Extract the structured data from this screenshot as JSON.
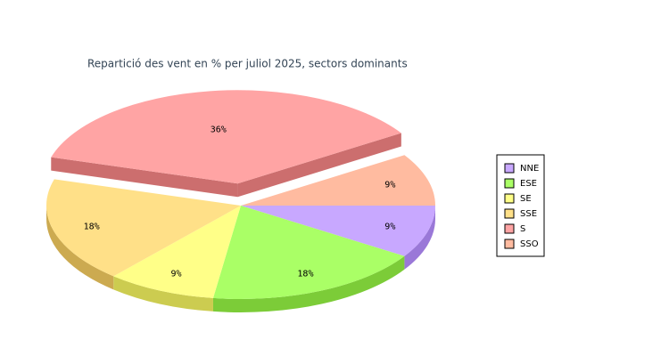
{
  "chart_data": {
    "type": "pie",
    "title": "Repartició des vent en % per juliol 2025, sectors dominants",
    "categories": [
      "NNE",
      "ESE",
      "SE",
      "SSE",
      "S",
      "SSO"
    ],
    "values": [
      9,
      18,
      9,
      18,
      36,
      9
    ],
    "value_labels": [
      "9%",
      "18%",
      "9%",
      "18%",
      "36%",
      "9%"
    ],
    "colors": [
      "#c8a8ff",
      "#aaff66",
      "#ffff88",
      "#ffe088",
      "#ffa4a4",
      "#ffbba0"
    ],
    "side_colors": [
      "#9a78d8",
      "#7ccc38",
      "#cccc50",
      "#ccaa50",
      "#cc6e6e",
      "#cc8c70"
    ],
    "exploded": "S",
    "legend": "right"
  }
}
